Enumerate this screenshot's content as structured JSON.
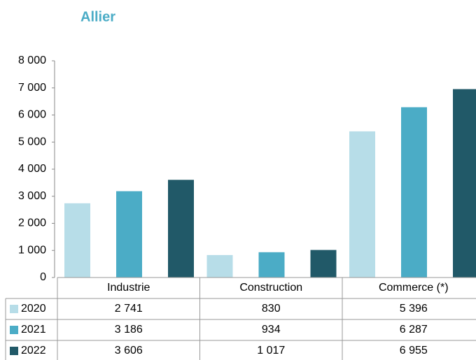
{
  "chart_data": {
    "type": "bar",
    "title": "Allier",
    "categories": [
      "Industrie",
      "Construction",
      "Commerce (*)"
    ],
    "series": [
      {
        "name": "2020",
        "color": "#b7dde8",
        "values": [
          2741,
          830,
          5396
        ],
        "value_labels": [
          "2 741",
          "830",
          "5 396"
        ]
      },
      {
        "name": "2021",
        "color": "#4bacc6",
        "values": [
          3186,
          934,
          6287
        ],
        "value_labels": [
          "3 186",
          "934",
          "6 287"
        ]
      },
      {
        "name": "2022",
        "color": "#215968",
        "values": [
          3606,
          1017,
          6955
        ],
        "value_labels": [
          "3 606",
          "1 017",
          "6 955"
        ]
      }
    ],
    "ylim": [
      0,
      8000
    ],
    "yticks": [
      0,
      {
        "value": 1000,
        "label": "1 000"
      },
      {
        "value": 2000,
        "label": "2 000"
      },
      {
        "value": 3000,
        "label": "3 000"
      },
      {
        "value": 4000,
        "label": "4 000"
      },
      {
        "value": 5000,
        "label": "5 000"
      },
      {
        "value": 6000,
        "label": "6 000"
      },
      {
        "value": 7000,
        "label": "7 000"
      },
      {
        "value": 8000,
        "label": "8 000"
      }
    ],
    "grid": false
  }
}
